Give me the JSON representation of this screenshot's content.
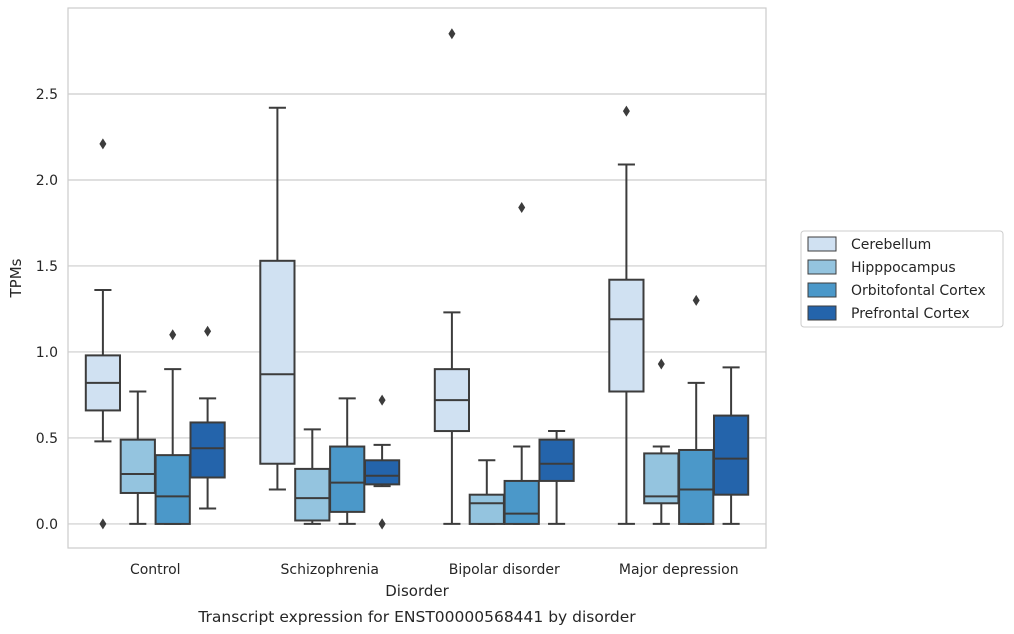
{
  "chart_data": {
    "type": "box",
    "title": "",
    "caption": "Transcript expression for ENST00000568441 by disorder",
    "xlabel": "Disorder",
    "ylabel": "TPMs",
    "ylim": [
      -0.14,
      3.0
    ],
    "yticks": [
      0.0,
      0.5,
      1.0,
      1.5,
      2.0,
      2.5
    ],
    "ytick_labels": [
      "0.0",
      "0.5",
      "1.0",
      "1.5",
      "2.0",
      "2.5"
    ],
    "grid": "horizontal",
    "legend_position": "right",
    "categories": [
      "Control",
      "Schizophrenia",
      "Bipolar disorder",
      "Major depression"
    ],
    "series": [
      {
        "name": "Cerebellum",
        "color": "#d0e1f2",
        "boxes": [
          {
            "whisker_low": 0.48,
            "q1": 0.66,
            "median": 0.82,
            "q3": 0.98,
            "whisker_high": 1.36,
            "outliers": [
              2.21,
              0.0
            ]
          },
          {
            "whisker_low": 0.2,
            "q1": 0.35,
            "median": 0.87,
            "q3": 1.53,
            "whisker_high": 2.42,
            "outliers": []
          },
          {
            "whisker_low": 0.0,
            "q1": 0.54,
            "median": 0.72,
            "q3": 0.9,
            "whisker_high": 1.23,
            "outliers": [
              2.85
            ]
          },
          {
            "whisker_low": 0.0,
            "q1": 0.77,
            "median": 1.19,
            "q3": 1.42,
            "whisker_high": 2.09,
            "outliers": [
              2.4
            ]
          }
        ]
      },
      {
        "name": "Hipppocampus",
        "color": "#94c4df",
        "boxes": [
          {
            "whisker_low": 0.0,
            "q1": 0.18,
            "median": 0.29,
            "q3": 0.49,
            "whisker_high": 0.77,
            "outliers": []
          },
          {
            "whisker_low": 0.0,
            "q1": 0.02,
            "median": 0.15,
            "q3": 0.32,
            "whisker_high": 0.55,
            "outliers": []
          },
          {
            "whisker_low": 0.0,
            "q1": 0.0,
            "median": 0.12,
            "q3": 0.17,
            "whisker_high": 0.37,
            "outliers": []
          },
          {
            "whisker_low": 0.0,
            "q1": 0.12,
            "median": 0.16,
            "q3": 0.41,
            "whisker_high": 0.45,
            "outliers": [
              0.93
            ]
          }
        ]
      },
      {
        "name": "Orbitofontal Cortex",
        "color": "#4b98c9",
        "boxes": [
          {
            "whisker_low": 0.0,
            "q1": 0.0,
            "median": 0.16,
            "q3": 0.4,
            "whisker_high": 0.9,
            "outliers": [
              1.1
            ]
          },
          {
            "whisker_low": 0.0,
            "q1": 0.07,
            "median": 0.24,
            "q3": 0.45,
            "whisker_high": 0.73,
            "outliers": []
          },
          {
            "whisker_low": 0.0,
            "q1": 0.0,
            "median": 0.06,
            "q3": 0.25,
            "whisker_high": 0.45,
            "outliers": [
              1.84
            ]
          },
          {
            "whisker_low": 0.0,
            "q1": 0.0,
            "median": 0.2,
            "q3": 0.43,
            "whisker_high": 0.82,
            "outliers": [
              1.3
            ]
          }
        ]
      },
      {
        "name": "Prefrontal Cortex",
        "color": "#2464ab",
        "boxes": [
          {
            "whisker_low": 0.09,
            "q1": 0.27,
            "median": 0.44,
            "q3": 0.59,
            "whisker_high": 0.73,
            "outliers": [
              1.12
            ]
          },
          {
            "whisker_low": 0.22,
            "q1": 0.23,
            "median": 0.28,
            "q3": 0.37,
            "whisker_high": 0.46,
            "outliers": [
              0.72,
              0.0,
              0.0
            ]
          },
          {
            "whisker_low": 0.0,
            "q1": 0.25,
            "median": 0.35,
            "q3": 0.49,
            "whisker_high": 0.54,
            "outliers": []
          },
          {
            "whisker_low": 0.0,
            "q1": 0.17,
            "median": 0.38,
            "q3": 0.63,
            "whisker_high": 0.91,
            "outliers": []
          }
        ]
      }
    ]
  }
}
